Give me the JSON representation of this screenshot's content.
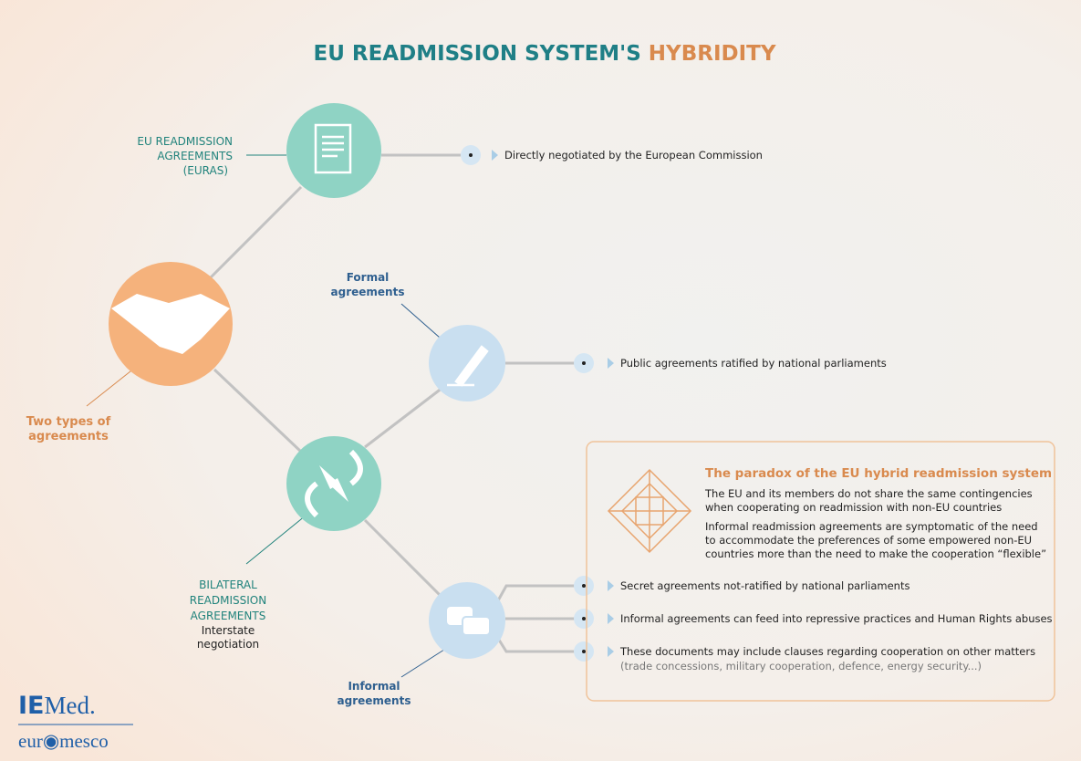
{
  "title": {
    "part1": "EU READMISSION SYSTEM'S",
    "part2": "HYBRIDITY"
  },
  "nodes": {
    "euras": {
      "label": [
        "EU READMISSION",
        "AGREEMENTS",
        "(EURAS)"
      ]
    },
    "two_types": {
      "label": [
        "Two types of",
        "agreements"
      ]
    },
    "formal": {
      "label": [
        "Formal",
        "agreements"
      ]
    },
    "bilateral": {
      "label": [
        "BILATERAL",
        "READMISSION",
        "AGREEMENTS"
      ],
      "sublabel": [
        "Interstate",
        "negotiation"
      ]
    },
    "informal": {
      "label": [
        "Informal",
        "agreements"
      ]
    }
  },
  "bullets": {
    "euras": "Directly negotiated by the European Commission",
    "formal": "Public agreements ratified by national parliaments",
    "informal": [
      "Secret agreements not-ratified by national parliaments",
      "Informal agreements can feed into repressive practices and Human Rights abuses",
      "These documents may include clauses regarding cooperation on other matters"
    ],
    "informal_note": "(trade concessions, military cooperation, defence, energy security...)"
  },
  "paradox": {
    "title": "The paradox of the EU hybrid readmission system",
    "para1": [
      "The EU and its members do not share the same contingencies",
      "when cooperating on readmission with non-EU countries"
    ],
    "para2": [
      "Informal readmission agreements are symptomatic of the need",
      "to accommodate the preferences of some empowered non-EU",
      "countries more than the need to make the cooperation “flexible”"
    ]
  },
  "logos": {
    "iemed_a": "IE",
    "iemed_b": "Med.",
    "euromesco": "eur◉mesco"
  }
}
